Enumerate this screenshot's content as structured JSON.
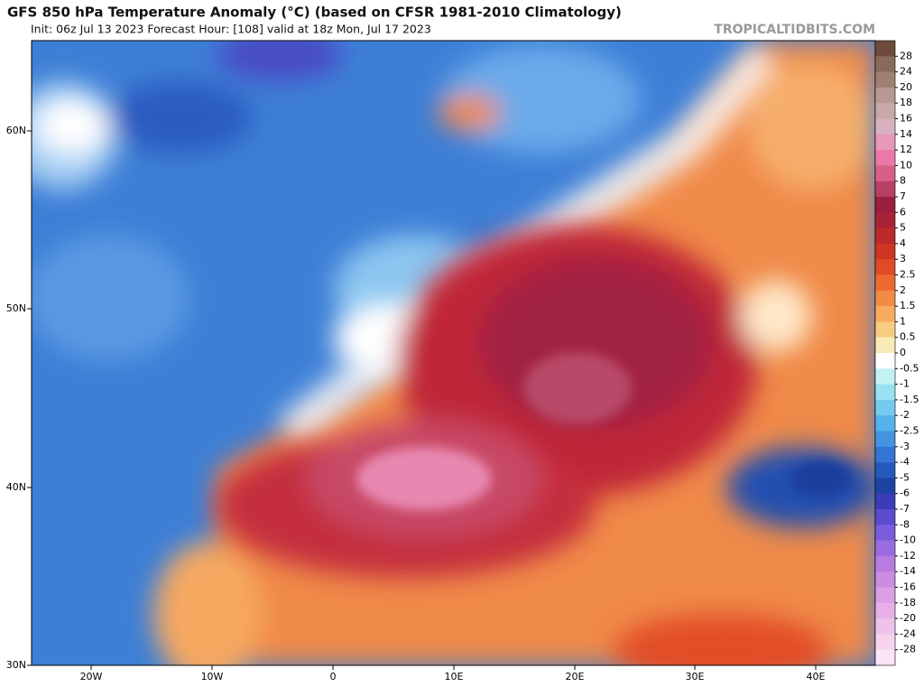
{
  "header": {
    "title": "GFS 850 hPa Temperature Anomaly (°C) (based on CFSR 1981-2010 Climatology)",
    "subtitle": "Init: 06z Jul 13 2023   Forecast Hour: [108]   valid at 18z Mon, Jul 17 2023",
    "watermark": "TROPICALTIDBITS.COM"
  },
  "map": {
    "latitude_labels": [
      "60N",
      "50N",
      "40N",
      "30N"
    ],
    "longitude_labels": [
      "20W",
      "10W",
      "0",
      "10E",
      "20E",
      "30E",
      "40E"
    ]
  },
  "legend": {
    "labels": [
      "28",
      "24",
      "20",
      "18",
      "16",
      "14",
      "12",
      "10",
      "8",
      "7",
      "6",
      "5",
      "4",
      "3",
      "2.5",
      "2",
      "1.5",
      "1",
      "0.5",
      "0",
      "-0.5",
      "-1",
      "-1.5",
      "-2",
      "-2.5",
      "-3",
      "-4",
      "-5",
      "-6",
      "-7",
      "-8",
      "-10",
      "-12",
      "-14",
      "-16",
      "-18",
      "-20",
      "-24",
      "-28"
    ],
    "colors": [
      "#6e4b3a",
      "#8a6a5a",
      "#a08070",
      "#b89890",
      "#c8a8a8",
      "#d8b0c0",
      "#e898b8",
      "#ec78a8",
      "#d86088",
      "#b84064",
      "#9a2040",
      "#a82434",
      "#bc2a2a",
      "#d03422",
      "#e04a24",
      "#ec6a32",
      "#f28c44",
      "#f6ac5c",
      "#f8cc80",
      "#faeab8",
      "#ffffff",
      "#c4f2f2",
      "#98e2f2",
      "#74cbf0",
      "#56b2ea",
      "#4494e2",
      "#3474d4",
      "#245abc",
      "#1c44a4",
      "#3a3cb8",
      "#5a4ccc",
      "#7a5cdc",
      "#9a6ce0",
      "#b87ce0",
      "#cc8ce2",
      "#dc9ee4",
      "#e6b0e6",
      "#eec2ea",
      "#f6d4f0",
      "#fce4f8"
    ]
  }
}
